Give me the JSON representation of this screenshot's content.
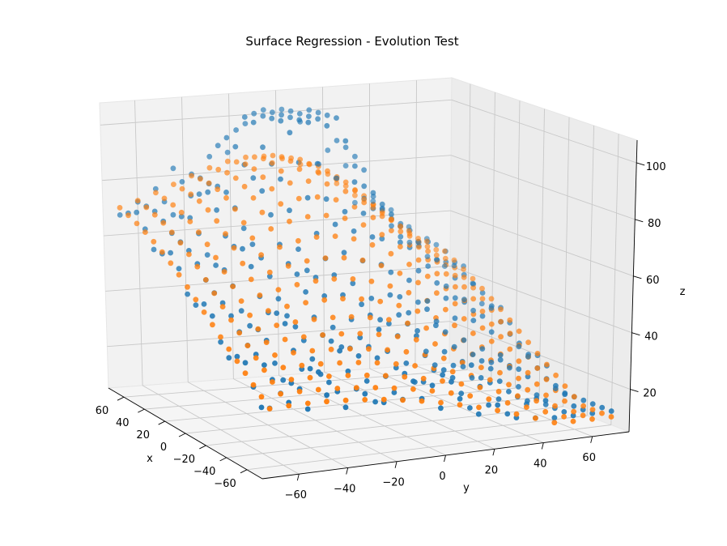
{
  "chart_data": {
    "type": "scatter",
    "projection": "3d",
    "title": "Surface Regression - Evolution Test",
    "xlabel": "x",
    "ylabel": "y",
    "zlabel": "z",
    "xlim": [
      -75,
      75
    ],
    "ylim": [
      -75,
      75
    ],
    "zlim": [
      5,
      108
    ],
    "x_ticks": [
      -60,
      -40,
      -20,
      0,
      20,
      40,
      60
    ],
    "y_ticks": [
      -60,
      -40,
      -20,
      0,
      20,
      40,
      60
    ],
    "z_ticks": [
      20,
      40,
      60,
      80,
      100
    ],
    "grid": true,
    "colors": {
      "observed": "#1f77b4",
      "fitted": "#ff7f0e"
    },
    "series": [
      {
        "style": "observed-scatter",
        "color": "#1f77b4",
        "grid_x": [
          -70,
          -62.2,
          -54.4,
          -46.7,
          -38.9,
          -31.1,
          -23.3,
          -15.6,
          -7.8,
          0,
          7.8,
          15.6,
          23.3,
          31.1,
          38.9,
          46.7,
          54.4,
          62.2,
          70
        ],
        "grid_y": [
          -70,
          -62.2,
          -54.4,
          -46.7,
          -38.9,
          -31.1,
          -23.3,
          -15.6,
          -7.8,
          0,
          7.8,
          15.6,
          23.3,
          31.1,
          38.9,
          46.7,
          54.4,
          62.2,
          70
        ],
        "z_range": [
          12,
          102
        ]
      },
      {
        "style": "fitted-surface",
        "color": "#ff7f0e",
        "grid_x": [
          -70,
          -62.2,
          -54.4,
          -46.7,
          -38.9,
          -31.1,
          -23.3,
          -15.6,
          -7.8,
          0,
          7.8,
          15.6,
          23.3,
          31.1,
          38.9,
          46.7,
          54.4,
          62.2,
          70
        ],
        "grid_y": [
          -70,
          -62.2,
          -54.4,
          -46.7,
          -38.9,
          -31.1,
          -23.3,
          -15.6,
          -7.8,
          0,
          7.8,
          15.6,
          23.3,
          31.1,
          38.9,
          46.7,
          54.4,
          62.2,
          70
        ],
        "z_range": [
          10,
          88
        ]
      }
    ]
  }
}
